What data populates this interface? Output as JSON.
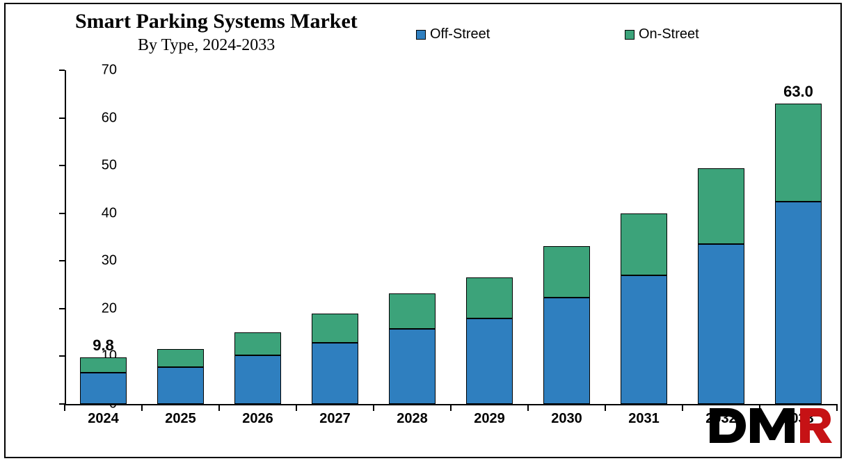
{
  "chart": {
    "type": "stacked-bar",
    "title": "Smart Parking Systems Market",
    "subtitle": "By Type, 2024-2033",
    "title_fontsize": 30,
    "subtitle_fontsize": 24,
    "title_font": "Times New Roman",
    "background_color": "#ffffff",
    "border_color": "#000000",
    "categories": [
      "2024",
      "2025",
      "2026",
      "2027",
      "2028",
      "2029",
      "2030",
      "2031",
      "2032",
      "2033"
    ],
    "series": [
      {
        "name": "Off-Street",
        "color": "#2f7fbf",
        "border": "#000000",
        "values": [
          6.6,
          7.8,
          10.2,
          12.9,
          15.7,
          18.0,
          22.3,
          27.0,
          33.5,
          42.5
        ]
      },
      {
        "name": "On-Street",
        "color": "#3ca37a",
        "border": "#000000",
        "values": [
          3.2,
          3.7,
          4.8,
          6.1,
          7.5,
          8.6,
          10.8,
          13.0,
          16.0,
          20.5
        ]
      }
    ],
    "data_labels": [
      {
        "category": "2024",
        "text": "9.8"
      },
      {
        "category": "2033",
        "text": "63.0"
      }
    ],
    "y_axis": {
      "min": 0,
      "max": 70,
      "step": 10,
      "tick_fontsize": 20,
      "tick_font": "Arial",
      "tick_color": "#000000"
    },
    "x_axis": {
      "tick_fontsize": 20,
      "tick_font": "Arial",
      "tick_fontweight": "bold",
      "tick_color": "#000000"
    },
    "legend": {
      "position": "top-right",
      "fontsize": 20,
      "font": "Arial",
      "swatch_border": "#000000",
      "items": [
        {
          "label": "Off-Street",
          "color": "#2f7fbf"
        },
        {
          "label": "On-Street",
          "color": "#3ca37a"
        }
      ]
    },
    "bar_width_ratio": 0.6,
    "axis_line_color": "#000000"
  },
  "watermark": {
    "text": "DMR",
    "color_d": "#000000",
    "color_m": "#000000",
    "color_r": "#c61215"
  }
}
